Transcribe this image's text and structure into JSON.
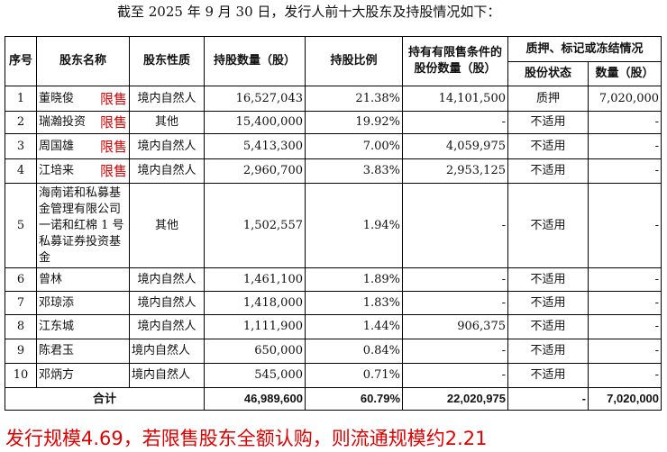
{
  "caption": "截至 2025 年 9 月 30 日，发行人前十大股东及持股情况如下：",
  "headers": {
    "seq": "序号",
    "name": "股东名称",
    "nature": "股东性质",
    "shares": "持股数量（股）",
    "ratio": "持股比例",
    "restricted": "持有有限售条件的股份数量（股）",
    "pledge_group": "质押、标记或冻结情况",
    "pledge_status": "股份状态",
    "pledge_qty": "数量（股）"
  },
  "rows": [
    {
      "seq": "1",
      "name": "董晓俊",
      "tag": "限售",
      "nature": "境内自然人",
      "shares": "16,527,043",
      "ratio": "21.38%",
      "restricted": "14,101,500",
      "status": "质押",
      "qty": "7,020,000"
    },
    {
      "seq": "2",
      "name": "瑞瀚投资",
      "tag": "限售",
      "nature": "其他",
      "shares": "15,400,000",
      "ratio": "19.92%",
      "restricted": "-",
      "status": "不适用",
      "qty": "-"
    },
    {
      "seq": "3",
      "name": "周国雄",
      "tag": "限售",
      "nature": "境内自然人",
      "shares": "5,413,300",
      "ratio": "7.00%",
      "restricted": "4,059,975",
      "status": "不适用",
      "qty": "-"
    },
    {
      "seq": "4",
      "name": "江培来",
      "tag": "限售",
      "nature": "境内自然人",
      "shares": "2,960,700",
      "ratio": "3.83%",
      "restricted": "2,953,125",
      "status": "不适用",
      "qty": "-"
    },
    {
      "seq": "5",
      "name": "海南诺和私募基金管理有限公司一诺和红棉 1 号私募证券投资基金",
      "tag": "",
      "nature": "其他",
      "shares": "1,502,557",
      "ratio": "1.94%",
      "restricted": "-",
      "status": "不适用",
      "qty": "-"
    },
    {
      "seq": "6",
      "name": "曾林",
      "tag": "",
      "nature": "境内自然人",
      "shares": "1,461,100",
      "ratio": "1.89%",
      "restricted": "-",
      "status": "不适用",
      "qty": "-"
    },
    {
      "seq": "7",
      "name": "邓琼添",
      "tag": "",
      "nature": "境内自然人",
      "shares": "1,418,000",
      "ratio": "1.83%",
      "restricted": "-",
      "status": "不适用",
      "qty": "-"
    },
    {
      "seq": "8",
      "name": "江东城",
      "tag": "",
      "nature": "境内自然人",
      "shares": "1,111,900",
      "ratio": "1.44%",
      "restricted": "906,375",
      "status": "不适用",
      "qty": "-"
    },
    {
      "seq": "9",
      "name": "陈君玉",
      "tag": "",
      "nature": "境内自然人",
      "shares": "650,000",
      "ratio": "0.84%",
      "restricted": "-",
      "status": "不适用",
      "qty": "-"
    },
    {
      "seq": "10",
      "name": "邓炳方",
      "tag": "",
      "nature": "境内自然人",
      "shares": "545,000",
      "ratio": "0.71%",
      "restricted": "-",
      "status": "不适用",
      "qty": "-"
    }
  ],
  "total": {
    "label": "合计",
    "shares": "46,989,600",
    "ratio": "60.79%",
    "restricted": "22,020,975",
    "status": "-",
    "qty": "7,020,000"
  },
  "note": "发行规模4.69，若限售股东全额认购，则流通规模约2.21"
}
